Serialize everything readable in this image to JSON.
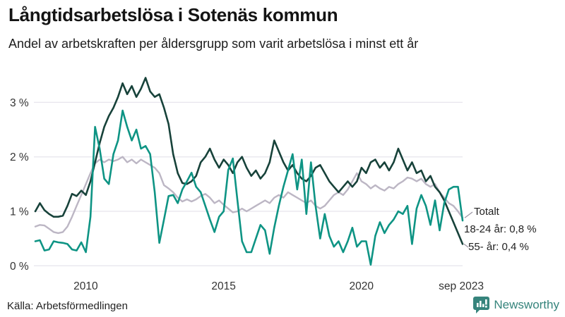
{
  "chart_data": {
    "type": "line",
    "title": "Långtidsarbetslösa i Sotenäs kommun",
    "subtitle": "Andel av arbetskraften per åldersgrupp som varit arbetslösa i minst ett år",
    "unit": "%",
    "grid": true,
    "legend_position": "end-of-line labels, right side",
    "x_range": [
      2008.17,
      2023.67
    ],
    "x_ticks": [
      {
        "label": "2010",
        "year": 2010.0
      },
      {
        "label": "2015",
        "year": 2015.0
      },
      {
        "label": "2020",
        "year": 2020.0
      },
      {
        "label": "sep 2023",
        "year": 2023.62
      }
    ],
    "y_ticks": [
      {
        "label": "0 %",
        "value": 0
      },
      {
        "label": "1 %",
        "value": 1
      },
      {
        "label": "2 %",
        "value": 2
      },
      {
        "label": "3 %",
        "value": 3
      }
    ],
    "ylim": [
      0,
      3.55
    ],
    "series": [
      {
        "name": "Totalt",
        "end_label": "Totalt",
        "color": "#bcb6c4",
        "stroke_width": 2.4,
        "values": [
          0.72,
          0.75,
          0.74,
          0.68,
          0.62,
          0.6,
          0.62,
          0.72,
          0.9,
          1.1,
          1.3,
          1.5,
          1.7,
          1.88,
          1.95,
          1.9,
          1.95,
          1.92,
          1.95,
          2.0,
          1.9,
          1.95,
          1.88,
          1.95,
          1.9,
          1.85,
          1.8,
          1.7,
          1.48,
          1.42,
          1.35,
          1.25,
          1.18,
          1.22,
          1.18,
          1.22,
          1.28,
          1.32,
          1.25,
          1.15,
          1.2,
          1.12,
          1.05,
          0.98,
          1.0,
          1.05,
          1.0,
          1.05,
          1.1,
          1.15,
          1.2,
          1.15,
          1.25,
          1.3,
          1.25,
          1.35,
          1.3,
          1.25,
          1.2,
          1.15,
          1.2,
          1.1,
          1.05,
          1.1,
          1.2,
          1.3,
          1.35,
          1.3,
          1.4,
          1.55,
          1.7,
          1.55,
          1.5,
          1.42,
          1.48,
          1.42,
          1.38,
          1.45,
          1.42,
          1.5,
          1.55,
          1.62,
          1.6,
          1.55,
          1.6,
          1.5,
          1.45,
          1.5,
          1.35,
          1.25,
          1.15,
          1.1,
          1.0,
          0.88
        ]
      },
      {
        "name": "55- år",
        "end_label": "55- år: 0,4 %",
        "end_value_text": "0,4 %",
        "color": "#17423a",
        "stroke_width": 2.6,
        "values": [
          1.0,
          1.15,
          1.02,
          0.95,
          0.9,
          0.9,
          0.92,
          1.1,
          1.32,
          1.28,
          1.38,
          1.3,
          1.55,
          1.9,
          2.25,
          2.55,
          2.75,
          2.9,
          3.1,
          3.35,
          3.15,
          3.3,
          3.1,
          3.25,
          3.45,
          3.2,
          3.1,
          3.15,
          2.9,
          2.6,
          2.05,
          1.7,
          1.52,
          1.5,
          1.55,
          1.65,
          1.9,
          2.0,
          2.15,
          1.95,
          1.8,
          1.95,
          1.85,
          1.7,
          1.9,
          2.0,
          1.8,
          1.65,
          1.75,
          1.6,
          1.7,
          1.9,
          2.3,
          2.1,
          1.9,
          1.75,
          1.85,
          1.7,
          1.6,
          1.55,
          1.65,
          1.8,
          1.85,
          1.7,
          1.55,
          1.45,
          1.35,
          1.45,
          1.55,
          1.45,
          1.55,
          1.8,
          1.7,
          1.9,
          1.95,
          1.8,
          1.9,
          1.75,
          1.9,
          2.15,
          1.95,
          1.75,
          1.9,
          1.7,
          1.75,
          1.55,
          1.65,
          1.45,
          1.35,
          1.2,
          1.0,
          0.8,
          0.6,
          0.4
        ]
      },
      {
        "name": "18-24 år",
        "end_label": "18-24 år: 0,8 %",
        "end_value_text": "0,8 %",
        "color": "#0e9484",
        "stroke_width": 2.6,
        "values": [
          0.45,
          0.47,
          0.28,
          0.3,
          0.45,
          0.43,
          0.42,
          0.4,
          0.3,
          0.28,
          0.43,
          0.25,
          0.9,
          2.55,
          2.15,
          1.6,
          1.5,
          2.05,
          2.3,
          2.85,
          2.55,
          2.3,
          2.5,
          2.15,
          2.2,
          2.05,
          1.35,
          0.42,
          0.85,
          1.28,
          1.3,
          1.15,
          1.4,
          1.55,
          1.71,
          1.45,
          1.35,
          1.1,
          0.85,
          0.62,
          0.9,
          1.0,
          1.76,
          1.97,
          1.2,
          0.45,
          0.25,
          0.25,
          0.5,
          0.75,
          0.65,
          0.22,
          0.7,
          1.1,
          1.45,
          1.75,
          2.05,
          1.4,
          1.95,
          0.95,
          1.9,
          1.1,
          0.5,
          0.95,
          0.55,
          0.35,
          0.45,
          0.25,
          0.45,
          0.7,
          0.35,
          0.45,
          0.45,
          0.02,
          0.55,
          0.8,
          0.6,
          0.75,
          0.85,
          1.0,
          0.95,
          1.1,
          0.4,
          1.05,
          1.3,
          1.1,
          0.75,
          1.2,
          0.65,
          1.15,
          1.4,
          1.45,
          1.45,
          0.83
        ]
      }
    ]
  },
  "footer": {
    "source": "Källa: Arbetsförmedlingen",
    "brand": "Newsworthy"
  },
  "colors": {
    "background": "#ffffff",
    "gridline": "#e9e7ee",
    "tick_text": "#333333",
    "annotation_text": "#222222",
    "leader_line": "#9a96a3",
    "brand_teal": "#36847c",
    "series_totalt": "#bcb6c4",
    "series_18_24": "#0e9484",
    "series_55": "#17423a"
  }
}
